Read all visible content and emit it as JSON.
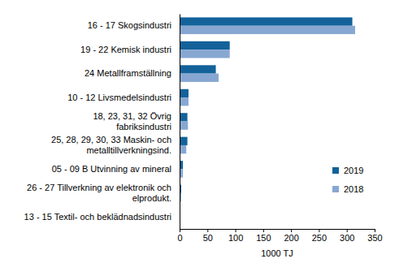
{
  "chart_data": {
    "type": "bar",
    "orientation": "horizontal",
    "xlabel": "1000 TJ",
    "categories": [
      "16 - 17 Skogsindustri",
      "19 - 22 Kemisk industri",
      "24 Metallframställning",
      "10 - 12 Livsmedelsindustri",
      "18, 23, 31, 32 Övrig\nfabriksindustri",
      "25, 28, 29, 30, 33 Maskin- och\nmetalltillverkningsind.",
      "05 - 09 B Utvinning av mineral",
      "26 - 27 Tillverkning av elektronik och\nelprodukt.",
      "13 - 15 Textil- och beklädnadsindustri"
    ],
    "series": [
      {
        "name": "2019",
        "color": "#13629a",
        "values": [
          310,
          90,
          65,
          16,
          14,
          14,
          6,
          3,
          1.5
        ]
      },
      {
        "name": "2018",
        "color": "#87a7d2",
        "values": [
          315,
          90,
          70,
          16,
          15,
          12,
          6,
          3,
          1.5
        ]
      }
    ],
    "xlim": [
      0,
      350
    ],
    "xticks": [
      0,
      50,
      100,
      150,
      200,
      250,
      300,
      350
    ],
    "legend": "lower right",
    "grid": false
  }
}
